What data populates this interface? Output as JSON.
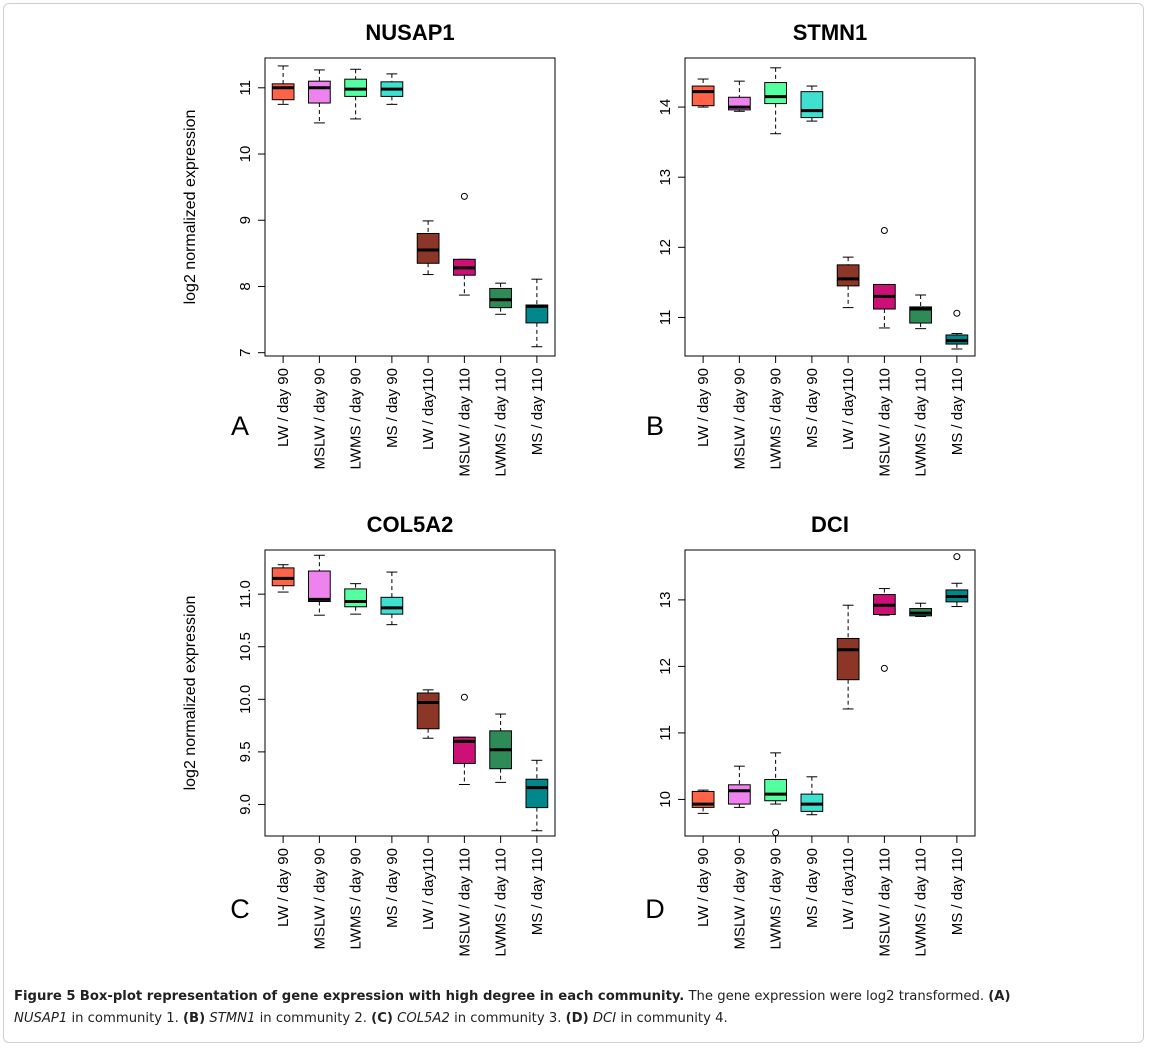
{
  "caption": {
    "label": "Figure 5",
    "title": "Box-plot representation of gene expression with high degree in each community.",
    "sentence": "The gene expression were log2 transformed.",
    "parts": [
      {
        "tag": "(A)",
        "gene": "NUSAP1",
        "text": "in community 1."
      },
      {
        "tag": "(B)",
        "gene": "STMN1",
        "text": "in community 2."
      },
      {
        "tag": "(C)",
        "gene": "COL5A2",
        "text": "in community 3."
      },
      {
        "tag": "(D)",
        "gene": "DCI",
        "text": "in community 4."
      }
    ]
  },
  "colors": {
    "LW / day 90": "#ff6347",
    "MSLW / day 90": "#ee82ee",
    "LWMS / day 90": "#54ff9f",
    "MS / day 90": "#40e0d0",
    "LW / day110": "#8b3626",
    "MSLW / day 110": "#cd1076",
    "LWMS / day 110": "#2e8b57",
    "MS / day 110": "#00868b"
  },
  "chart_data": [
    {
      "type": "box",
      "panel": "A",
      "title": "NUSAP1",
      "ylabel": "log2 normalized expression",
      "ylim": [
        6.95,
        11.45
      ],
      "yticks": [
        7,
        8,
        9,
        10,
        11
      ],
      "categories": [
        "LW / day 90",
        "MSLW / day 90",
        "LWMS / day 90",
        "MS / day 90",
        "LW / day110",
        "MSLW / day 110",
        "LWMS / day 110",
        "MS / day 110"
      ],
      "boxes": [
        {
          "min": 10.75,
          "q1": 10.82,
          "median": 11.0,
          "q3": 11.06,
          "max": 11.33,
          "outliers": []
        },
        {
          "min": 10.47,
          "q1": 10.77,
          "median": 11.0,
          "q3": 11.1,
          "max": 11.27,
          "outliers": []
        },
        {
          "min": 10.53,
          "q1": 10.87,
          "median": 10.98,
          "q3": 11.13,
          "max": 11.28,
          "outliers": []
        },
        {
          "min": 10.75,
          "q1": 10.87,
          "median": 10.98,
          "q3": 11.09,
          "max": 11.21,
          "outliers": []
        },
        {
          "min": 8.18,
          "q1": 8.35,
          "median": 8.55,
          "q3": 8.8,
          "max": 8.99,
          "outliers": []
        },
        {
          "min": 7.87,
          "q1": 8.17,
          "median": 8.28,
          "q3": 8.41,
          "max": 8.41,
          "outliers": [
            9.36
          ]
        },
        {
          "min": 7.58,
          "q1": 7.68,
          "median": 7.8,
          "q3": 7.97,
          "max": 8.05,
          "outliers": []
        },
        {
          "min": 7.09,
          "q1": 7.45,
          "median": 7.7,
          "q3": 7.72,
          "max": 8.11,
          "outliers": []
        }
      ]
    },
    {
      "type": "box",
      "panel": "B",
      "title": "STMN1",
      "ylabel": "",
      "ylim": [
        10.45,
        14.7
      ],
      "yticks": [
        11,
        12,
        13,
        14
      ],
      "categories": [
        "LW / day 90",
        "MSLW / day 90",
        "LWMS / day 90",
        "MS / day 90",
        "LW / day110",
        "MSLW / day 110",
        "LWMS / day 110",
        "MS / day 110"
      ],
      "boxes": [
        {
          "min": 14.0,
          "q1": 14.02,
          "median": 14.22,
          "q3": 14.3,
          "max": 14.4,
          "outliers": []
        },
        {
          "min": 13.94,
          "q1": 13.96,
          "median": 14.0,
          "q3": 14.14,
          "max": 14.37,
          "outliers": []
        },
        {
          "min": 13.62,
          "q1": 14.05,
          "median": 14.15,
          "q3": 14.35,
          "max": 14.56,
          "outliers": []
        },
        {
          "min": 13.8,
          "q1": 13.85,
          "median": 13.95,
          "q3": 14.22,
          "max": 14.3,
          "outliers": []
        },
        {
          "min": 11.14,
          "q1": 11.45,
          "median": 11.55,
          "q3": 11.75,
          "max": 11.86,
          "outliers": []
        },
        {
          "min": 10.85,
          "q1": 11.12,
          "median": 11.3,
          "q3": 11.47,
          "max": 11.47,
          "outliers": [
            12.24
          ]
        },
        {
          "min": 10.84,
          "q1": 10.92,
          "median": 11.12,
          "q3": 11.15,
          "max": 11.32,
          "outliers": []
        },
        {
          "min": 10.55,
          "q1": 10.62,
          "median": 10.67,
          "q3": 10.75,
          "max": 10.77,
          "outliers": [
            11.06
          ]
        }
      ]
    },
    {
      "type": "box",
      "panel": "C",
      "title": "COL5A2",
      "ylabel": "log2 normalized expression",
      "ylim": [
        8.7,
        11.42
      ],
      "yticks": [
        9.0,
        9.5,
        10.0,
        10.5,
        11.0
      ],
      "yticklabels": [
        "9.0",
        "9.5",
        "10.0",
        "10.5",
        "11.0"
      ],
      "categories": [
        "LW / day 90",
        "MSLW / day 90",
        "LWMS / day 90",
        "MS / day 90",
        "LW / day110",
        "MSLW / day 110",
        "LWMS / day 110",
        "MS / day 110"
      ],
      "boxes": [
        {
          "min": 11.02,
          "q1": 11.08,
          "median": 11.15,
          "q3": 11.25,
          "max": 11.28,
          "outliers": []
        },
        {
          "min": 10.8,
          "q1": 10.93,
          "median": 10.95,
          "q3": 11.22,
          "max": 11.37,
          "outliers": []
        },
        {
          "min": 10.81,
          "q1": 10.88,
          "median": 10.93,
          "q3": 11.05,
          "max": 11.1,
          "outliers": []
        },
        {
          "min": 10.71,
          "q1": 10.81,
          "median": 10.87,
          "q3": 10.97,
          "max": 11.21,
          "outliers": []
        },
        {
          "min": 9.63,
          "q1": 9.72,
          "median": 9.97,
          "q3": 10.06,
          "max": 10.09,
          "outliers": []
        },
        {
          "min": 9.19,
          "q1": 9.39,
          "median": 9.6,
          "q3": 9.64,
          "max": 9.64,
          "outliers": [
            10.02
          ]
        },
        {
          "min": 9.21,
          "q1": 9.34,
          "median": 9.52,
          "q3": 9.7,
          "max": 9.86,
          "outliers": []
        },
        {
          "min": 8.75,
          "q1": 8.97,
          "median": 9.16,
          "q3": 9.24,
          "max": 9.42,
          "outliers": []
        }
      ]
    },
    {
      "type": "box",
      "panel": "D",
      "title": "DCI",
      "ylabel": "",
      "ylim": [
        9.45,
        13.75
      ],
      "yticks": [
        10,
        11,
        12,
        13
      ],
      "categories": [
        "LW / day 90",
        "MSLW / day 90",
        "LWMS / day 90",
        "MS / day 90",
        "LW / day110",
        "MSLW / day 110",
        "LWMS / day 110",
        "MS / day 110"
      ],
      "boxes": [
        {
          "min": 9.79,
          "q1": 9.88,
          "median": 9.93,
          "q3": 10.12,
          "max": 10.14,
          "outliers": []
        },
        {
          "min": 9.88,
          "q1": 9.93,
          "median": 10.13,
          "q3": 10.22,
          "max": 10.5,
          "outliers": []
        },
        {
          "min": 9.93,
          "q1": 9.98,
          "median": 10.08,
          "q3": 10.3,
          "max": 10.7,
          "outliers": [
            9.5
          ]
        },
        {
          "min": 9.77,
          "q1": 9.82,
          "median": 9.93,
          "q3": 10.08,
          "max": 10.34,
          "outliers": []
        },
        {
          "min": 11.36,
          "q1": 11.8,
          "median": 12.25,
          "q3": 12.42,
          "max": 12.92,
          "outliers": []
        },
        {
          "min": 12.77,
          "q1": 12.78,
          "median": 12.92,
          "q3": 13.08,
          "max": 13.17,
          "outliers": [
            11.97
          ]
        },
        {
          "min": 12.75,
          "q1": 12.76,
          "median": 12.8,
          "q3": 12.87,
          "max": 12.95,
          "outliers": []
        },
        {
          "min": 12.9,
          "q1": 12.97,
          "median": 13.05,
          "q3": 13.15,
          "max": 13.25,
          "outliers": [
            13.65
          ]
        }
      ]
    }
  ]
}
